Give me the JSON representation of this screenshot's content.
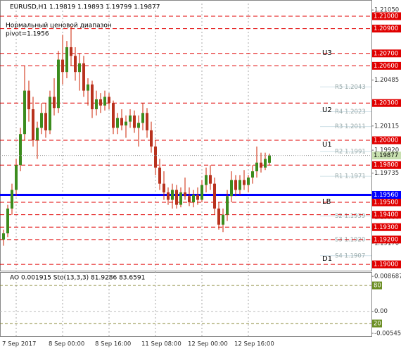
{
  "chart_data": {
    "type": "candlestick",
    "title": "EURUSD,H1  1.19819 1.19893 1.19799 1.19877",
    "annotations": [
      "Нормальный ценовой диапазон",
      "pivot=1.1956"
    ],
    "categories": [
      null,
      null,
      null,
      "7 Sep 2017",
      null,
      null,
      null,
      null,
      null,
      null,
      null,
      null,
      null,
      null,
      "8 Sep 00:00",
      null,
      null,
      null,
      null,
      null,
      null,
      null,
      null,
      null,
      null,
      "8 Sep 16:00",
      null,
      null,
      null,
      null,
      null,
      null,
      null,
      null,
      null,
      null,
      "11 Sep 08:00",
      null,
      null,
      null,
      null,
      null,
      null,
      null,
      null,
      null,
      null,
      "12 Sep 00:00",
      null,
      null,
      null,
      null,
      null,
      null,
      null,
      null,
      null,
      null,
      "12 Sep 16:00",
      null,
      null,
      null,
      null,
      null
    ],
    "open": [
      1.192,
      1.1925,
      1.1945,
      1.196,
      1.198,
      1.2005,
      1.204,
      1.2025,
      1.2,
      1.201,
      1.2022,
      1.2008,
      1.2035,
      1.2026,
      1.2065,
      1.2055,
      1.2075,
      1.2068,
      1.2055,
      1.2062,
      1.204,
      1.2045,
      1.2025,
      1.2033,
      1.2028,
      1.2035,
      1.203,
      1.201,
      1.2018,
      1.2012,
      1.2015,
      1.202,
      1.201,
      1.2014,
      1.2022,
      1.2008,
      1.1995,
      1.1978,
      1.1965,
      1.1958,
      1.1952,
      1.196,
      1.1948,
      1.1958,
      1.1955,
      1.195,
      1.1956,
      1.1952,
      1.1964,
      1.1972,
      1.1965,
      1.1945,
      1.1932,
      1.194,
      1.1955,
      1.1968,
      1.196,
      1.1968,
      1.1964,
      1.197,
      1.1975,
      1.1982,
      1.1978,
      1.19819
    ],
    "high": [
      1.1928,
      1.1948,
      1.1965,
      1.1985,
      1.201,
      1.206,
      1.2048,
      1.2035,
      1.2015,
      1.203,
      1.203,
      1.204,
      1.205,
      1.2072,
      1.2085,
      1.208,
      1.2092,
      1.2075,
      1.207,
      1.2068,
      1.205,
      1.2048,
      1.204,
      1.2038,
      1.204,
      1.2038,
      1.2032,
      1.2022,
      1.2025,
      1.202,
      1.2025,
      1.2024,
      1.202,
      1.203,
      1.2026,
      1.2015,
      1.2,
      1.1985,
      1.1975,
      1.1962,
      1.1965,
      1.1964,
      1.1962,
      1.197,
      1.1962,
      1.196,
      1.1962,
      1.1968,
      1.1978,
      1.198,
      1.197,
      1.195,
      1.1945,
      1.196,
      1.1975,
      1.1972,
      1.1972,
      1.1976,
      1.1972,
      1.198,
      1.1995,
      1.199,
      1.199,
      1.19893
    ],
    "low": [
      1.1915,
      1.1922,
      1.194,
      1.1955,
      1.1975,
      1.2,
      1.2015,
      1.1995,
      1.1985,
      1.2005,
      1.2002,
      1.2005,
      1.202,
      1.2022,
      1.2045,
      1.205,
      1.206,
      1.2048,
      1.204,
      1.2035,
      1.2028,
      1.2018,
      1.202,
      1.2022,
      1.2024,
      1.2025,
      1.2005,
      1.2005,
      1.2008,
      1.2002,
      1.201,
      1.2006,
      1.1995,
      1.2008,
      1.2002,
      1.199,
      1.1972,
      1.196,
      1.1952,
      1.1948,
      1.1945,
      1.1945,
      1.1946,
      1.1952,
      1.1947,
      1.1946,
      1.1948,
      1.195,
      1.1958,
      1.196,
      1.194,
      1.1928,
      1.1926,
      1.1935,
      1.195,
      1.1955,
      1.1956,
      1.196,
      1.1958,
      1.1965,
      1.197,
      1.1974,
      1.1976,
      1.19799
    ],
    "close": [
      1.1925,
      1.1945,
      1.196,
      1.198,
      1.2005,
      1.204,
      1.2025,
      1.2,
      1.201,
      1.2022,
      1.2008,
      1.2035,
      1.2026,
      1.2065,
      1.2055,
      1.2075,
      1.2068,
      1.2055,
      1.2062,
      1.204,
      1.2045,
      1.2025,
      1.2033,
      1.2028,
      1.2035,
      1.203,
      1.201,
      1.2018,
      1.2012,
      1.2015,
      1.202,
      1.201,
      1.2014,
      1.2022,
      1.2008,
      1.1995,
      1.1978,
      1.1965,
      1.1958,
      1.1952,
      1.196,
      1.1948,
      1.1958,
      1.1955,
      1.195,
      1.1956,
      1.1952,
      1.1964,
      1.1972,
      1.1965,
      1.1945,
      1.1932,
      1.194,
      1.1955,
      1.1968,
      1.196,
      1.1968,
      1.1964,
      1.197,
      1.1975,
      1.1982,
      1.1978,
      1.1985,
      1.19877
    ],
    "colors": {
      "up": "#3c8c1e",
      "down": "#b8321e",
      "wick": "#cc2200"
    },
    "ylim": [
      1.18955,
      1.21102
    ],
    "yticks": [
      {
        "value": 1.2105,
        "label": "1.21050"
      },
      1.20485,
      1.20115,
      {
        "value": 1.1992,
        "label": "1.19920"
      },
      1.19735,
      {
        "value": 1.1938,
        "label": "1.19380"
      },
      {
        "value": 1.1917,
        "label": "1.19170"
      }
    ],
    "levels": [
      {
        "value": 1.21,
        "label": "1.21000"
      },
      {
        "value": 1.209,
        "label": "1.20900"
      },
      {
        "value": 1.207,
        "label": "1.20700"
      },
      {
        "value": 1.206,
        "label": "1.20600"
      },
      {
        "value": 1.203,
        "label": "1.20300"
      },
      {
        "value": 1.2,
        "label": "1.20000"
      },
      {
        "value": 1.198,
        "label": "1.19800"
      },
      {
        "value": 1.195,
        "label": "1.19500"
      },
      {
        "value": 1.194,
        "label": "1.19400"
      },
      {
        "value": 1.193,
        "label": "1.19300"
      },
      {
        "value": 1.192,
        "label": "1.19200"
      },
      {
        "value": 1.19,
        "label": "1.19000"
      }
    ],
    "level_color": "#e00000",
    "pivot": {
      "value": 1.1956,
      "label": "1.19560",
      "color": "#0000ff"
    },
    "last_price": 1.19877,
    "zones": [
      {
        "name": "U3",
        "value": 1.207
      },
      {
        "name": "U2",
        "value": 1.2024
      },
      {
        "name": "U1",
        "value": 1.1996
      },
      {
        "name": "LB",
        "value": 1.195
      },
      {
        "name": "D1",
        "value": 1.1904
      }
    ],
    "pivot_points": [
      {
        "name": "R5 1.2043",
        "value": 1.2043
      },
      {
        "name": "R4 1.2023",
        "value": 1.2023
      },
      {
        "name": "R3 1.2011",
        "value": 1.2011
      },
      {
        "name": "R2 1.1991",
        "value": 1.1991
      },
      {
        "name": "R1 1.1971",
        "value": 1.1971
      },
      {
        "name": "S2 1.1939",
        "value": 1.1939
      },
      {
        "name": "S3 1.1920",
        "value": 1.192
      },
      {
        "name": "S4 1.1907",
        "value": 1.1907
      }
    ],
    "indicator": {
      "title": "AO 0.001915  Sto(13,3,3) 81.9286 83.6591",
      "ao_lim": [
        -0.00618,
        0.00959
      ],
      "ao_ticks": [
        0.008687,
        {
          "value": 0,
          "label": "0.00"
        },
        -0.005458
      ],
      "sto_lim": [
        0,
        100
      ],
      "sto_ticks": [
        80,
        20
      ]
    }
  }
}
